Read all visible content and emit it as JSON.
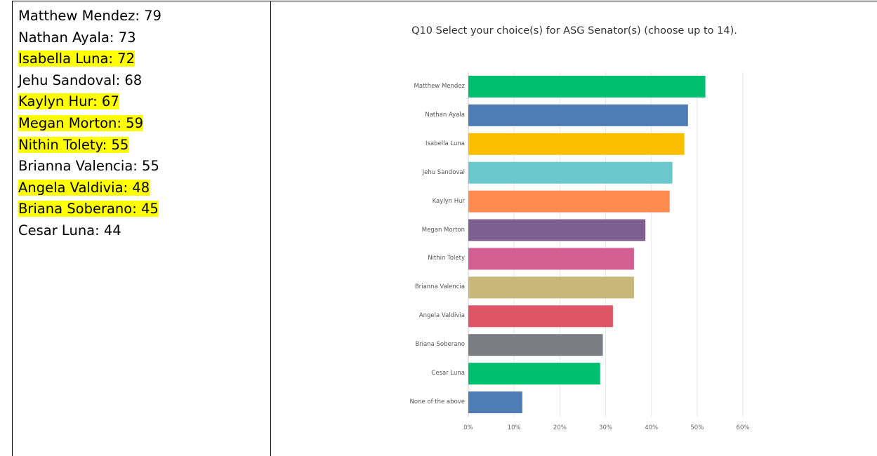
{
  "list": [
    {
      "text": "Matthew Mendez: 79",
      "highlight": false
    },
    {
      "text": "Nathan Ayala: 73",
      "highlight": false
    },
    {
      "text": "Isabella Luna: 72",
      "highlight": true
    },
    {
      "text": "Jehu Sandoval: 68",
      "highlight": false
    },
    {
      "text": "Kaylyn Hur: 67",
      "highlight": true
    },
    {
      "text": "Megan Morton: 59",
      "highlight": true
    },
    {
      "text": "Nithin Tolety: 55",
      "highlight": true
    },
    {
      "text": "Brianna Valencia: 55",
      "highlight": false
    },
    {
      "text": "Angela Valdivia: 48",
      "highlight": true
    },
    {
      "text": "Briana Soberano: 45",
      "highlight": true
    },
    {
      "text": "Cesar Luna: 44",
      "highlight": false
    }
  ],
  "chart_data": {
    "type": "bar",
    "orientation": "horizontal",
    "title": "Q10 Select your choice(s) for ASG Senator(s) (choose up to 14).",
    "categories": [
      "Matthew Mendez",
      "Nathan Ayala",
      "Isabella Luna",
      "Jehu Sandoval",
      "Kaylyn Hur",
      "Megan Morton",
      "Nithin Tolety",
      "Brianna Valencia",
      "Angela Valdivia",
      "Briana Soberano",
      "Cesar Luna",
      "None of the above"
    ],
    "values": [
      51.8,
      48.0,
      47.2,
      44.6,
      44.0,
      38.7,
      36.2,
      36.2,
      31.6,
      29.4,
      28.8,
      11.8
    ],
    "colors": [
      "#00bf6f",
      "#507cb6",
      "#f9be00",
      "#6bc8cd",
      "#ff8b4f",
      "#7f5f90",
      "#d25f90",
      "#c7b879",
      "#dd5566",
      "#7a7e82",
      "#00bf6f",
      "#507cb6"
    ],
    "xlim": [
      0,
      60
    ],
    "xticks": [
      {
        "value": 0,
        "label": "0%"
      },
      {
        "value": 10,
        "label": "10%"
      },
      {
        "value": 20,
        "label": "20%"
      },
      {
        "value": 30,
        "label": "30%"
      },
      {
        "value": 40,
        "label": "40%"
      },
      {
        "value": 50,
        "label": "50%"
      },
      {
        "value": 60,
        "label": "60%"
      }
    ],
    "grid": true
  }
}
